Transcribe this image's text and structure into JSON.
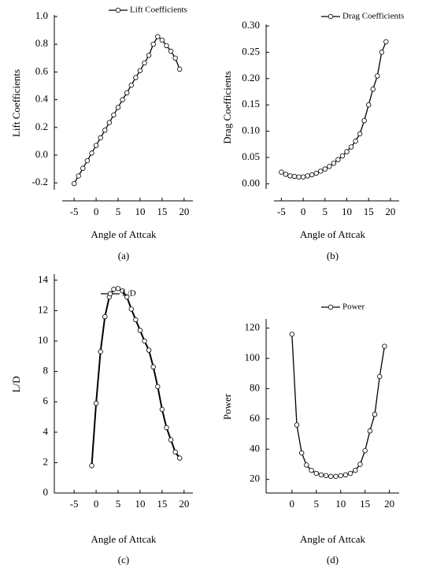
{
  "chart_data": [
    {
      "type": "line",
      "label": "(a)",
      "xlabel": "Angle of Attcak",
      "ylabel": "Lift Coefficients",
      "x": [
        -5,
        -4,
        -3,
        -2,
        -1,
        0,
        1,
        2,
        3,
        4,
        5,
        6,
        7,
        8,
        9,
        10,
        11,
        12,
        13,
        14,
        15,
        16,
        17,
        18,
        19
      ],
      "series": [
        {
          "name": "Lift Coefficients",
          "color": "#000000",
          "values": [
            -0.205,
            -0.15,
            -0.095,
            -0.04,
            0.015,
            0.07,
            0.125,
            0.18,
            0.235,
            0.29,
            0.345,
            0.4,
            0.45,
            0.505,
            0.56,
            0.61,
            0.665,
            0.72,
            0.8,
            0.855,
            0.83,
            0.79,
            0.75,
            0.7,
            0.62
          ]
        }
      ],
      "xlim": [
        -9.5,
        22
      ],
      "ylim": [
        -0.25,
        1.0
      ],
      "xticks": [
        -5,
        0,
        5,
        10,
        15,
        20
      ],
      "yticks": [
        {
          "value": 1.0,
          "label": "1.0"
        },
        0.8,
        0.6,
        0.4,
        0.2,
        {
          "value": 0.0,
          "label": "0.0"
        },
        -0.2
      ]
    },
    {
      "type": "line",
      "label": "(b)",
      "xlabel": "Angle of Attcak",
      "ylabel": "Drag Coefficients",
      "x": [
        -5,
        -4,
        -3,
        -2,
        -1,
        0,
        1,
        2,
        3,
        4,
        5,
        6,
        7,
        8,
        9,
        10,
        11,
        12,
        13,
        14,
        15,
        16,
        17,
        18,
        19
      ],
      "series": [
        {
          "name": "Drag Coefficients",
          "color": "#000000",
          "values": [
            0.022,
            0.018,
            0.015,
            0.014,
            0.013,
            0.013,
            0.015,
            0.017,
            0.02,
            0.024,
            0.028,
            0.033,
            0.039,
            0.046,
            0.053,
            0.061,
            0.07,
            0.081,
            0.095,
            0.12,
            0.15,
            0.18,
            0.205,
            0.25,
            0.27
          ]
        }
      ],
      "xlim": [
        -8.5,
        22
      ],
      "ylim": [
        -0.01,
        0.3
      ],
      "xticks": [
        -5,
        0,
        5,
        10,
        15,
        20
      ],
      "yticks": [
        {
          "value": 0.3,
          "label": "0.30"
        },
        0.25,
        {
          "value": 0.2,
          "label": "0.20"
        },
        0.15,
        {
          "value": 0.1,
          "label": "0.10"
        },
        0.05,
        {
          "value": 0.0,
          "label": "0.00"
        }
      ]
    },
    {
      "type": "line",
      "label": "(c)",
      "xlabel": "Angle of Attcak",
      "ylabel": "L/D",
      "x": [
        -1,
        0,
        1,
        2,
        3,
        4,
        5,
        6,
        7,
        8,
        9,
        10,
        11,
        12,
        13,
        14,
        15,
        16,
        17,
        18,
        19
      ],
      "series": [
        {
          "name": "L/D",
          "color": "#000000",
          "values": [
            1.8,
            5.9,
            9.3,
            11.6,
            12.9,
            13.4,
            13.45,
            13.3,
            12.9,
            12.1,
            11.4,
            10.7,
            10.0,
            9.4,
            8.3,
            7.0,
            5.5,
            4.3,
            3.5,
            2.7,
            2.3
          ]
        }
      ],
      "xlim": [
        -9.5,
        22
      ],
      "ylim": [
        0,
        14.3
      ],
      "xticks": [
        -5,
        0,
        5,
        10,
        15,
        20
      ],
      "yticks": [
        14,
        12,
        10,
        8,
        6,
        4,
        2,
        0
      ]
    },
    {
      "type": "line",
      "label": "(d)",
      "xlabel": "Angle of Attcak",
      "ylabel": "Power",
      "x": [
        0,
        1,
        2,
        3,
        4,
        5,
        6,
        7,
        8,
        9,
        10,
        11,
        12,
        13,
        14,
        15,
        16,
        17,
        18,
        19
      ],
      "series": [
        {
          "name": "Power",
          "color": "#000000",
          "values": [
            116,
            56,
            37.5,
            29.5,
            26,
            24,
            23,
            22.5,
            22,
            22,
            22.5,
            23,
            24,
            26,
            30,
            39,
            52,
            63,
            88,
            108
          ]
        }
      ],
      "xlim": [
        -5.3,
        22
      ],
      "ylim": [
        11,
        125
      ],
      "xticks": [
        0,
        5,
        10,
        15,
        20
      ],
      "yticks": [
        120,
        100,
        80,
        60,
        40,
        20
      ]
    }
  ]
}
